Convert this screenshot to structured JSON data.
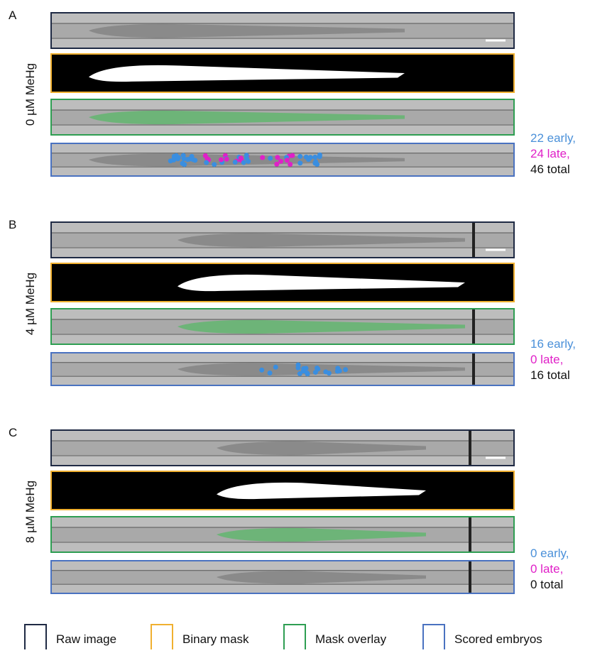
{
  "panels": [
    {
      "label": "A",
      "condition": "0 µM MeHg",
      "counts": [
        "22 early,",
        "24 late,",
        "46 total"
      ]
    },
    {
      "label": "B",
      "condition": "4 µM MeHg",
      "counts": [
        "16 early,",
        "0 late,",
        "16 total"
      ]
    },
    {
      "label": "C",
      "condition": "8 µM MeHg",
      "counts": [
        "0 early,",
        "0 late,",
        "0 total"
      ]
    }
  ],
  "legend": [
    "Raw image",
    "Binary mask",
    "Mask overlay",
    "Scored embryos"
  ]
}
